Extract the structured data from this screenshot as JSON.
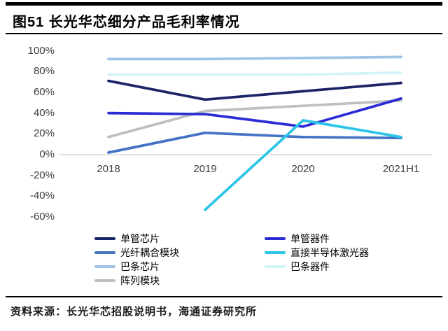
{
  "page": {
    "title": "图51 长光华芯细分产品毛利率情况",
    "source": "资料来源：长光华芯招股说明书，海通证券研究所"
  },
  "chart_data": {
    "type": "line",
    "title": "长光华芯细分产品毛利率情况",
    "unit": "%",
    "categories": [
      "2018",
      "2019",
      "2020",
      "2021H1"
    ],
    "series": [
      {
        "name": "巴条芯片",
        "color": "#9DC3E6",
        "values": [
          92,
          92,
          93,
          94
        ]
      },
      {
        "name": "巴条器件",
        "color": "#D2F4F9",
        "values": [
          77,
          77,
          77,
          79
        ]
      },
      {
        "name": "阵列模块",
        "color": "#BFBFBF",
        "values": [
          17,
          42,
          47,
          52
        ]
      },
      {
        "name": "光纤耦合模块",
        "color": "#4472C4",
        "values": [
          2,
          21,
          17,
          16
        ]
      },
      {
        "name": "单管器件",
        "color": "#2B2BD5",
        "values": [
          40,
          39,
          27,
          54
        ]
      },
      {
        "name": "单管芯片",
        "color": "#1B2566",
        "values": [
          71,
          53,
          61,
          69
        ]
      },
      {
        "name": "直接半导体激光器",
        "color": "#2BC5E8",
        "values": [
          null,
          -53,
          33,
          17
        ]
      }
    ],
    "ylim": [
      -60,
      100
    ],
    "yticks": [
      "100%",
      "80%",
      "60%",
      "40%",
      "20%",
      "0%",
      "-20%",
      "-40%",
      "-60%"
    ],
    "grid": false,
    "legend_position": "bottom",
    "axis_color": "#d0d0d0"
  },
  "legend": {
    "columns": [
      [
        "单管芯片",
        "光纤耦合模块",
        "巴条芯片",
        "阵列模块"
      ],
      [
        "单管器件",
        "直接半导体激光器",
        "巴条器件"
      ]
    ]
  }
}
